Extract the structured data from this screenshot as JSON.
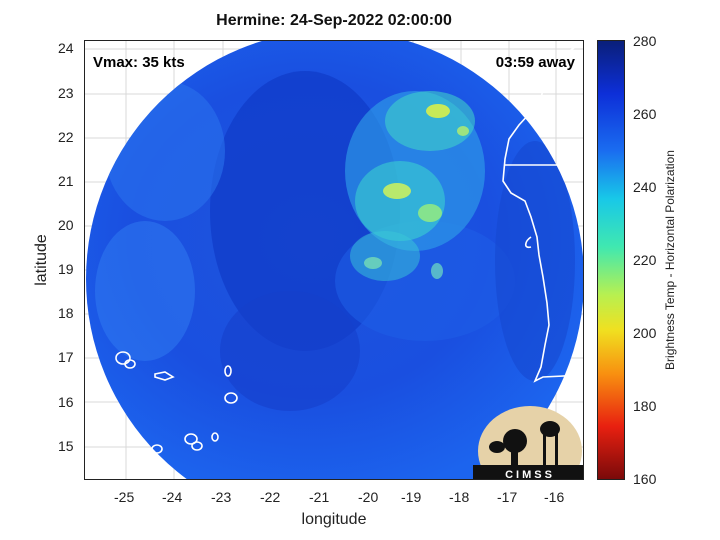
{
  "title": "Hermine: 24-Sep-2022 02:00:00",
  "vmax_label": "Vmax: 35 kts",
  "time_label": "03:59 away",
  "xlabel": "longitude",
  "ylabel": "latitude",
  "x_ticks": [
    "-25",
    "-24",
    "-23",
    "-22",
    "-21",
    "-20",
    "-19",
    "-18",
    "-17",
    "-16"
  ],
  "y_ticks": [
    "24",
    "23",
    "22",
    "21",
    "20",
    "19",
    "18",
    "17",
    "16",
    "15"
  ],
  "colorbar": {
    "label": "Brightness Temp - Horizontal Polarization",
    "ticks": [
      "280",
      "260",
      "240",
      "220",
      "200",
      "180",
      "160"
    ],
    "range": [
      160,
      280
    ]
  },
  "logo_text": "CIMSS",
  "colors": {
    "background_blue": "#1a5ae6",
    "deep_blue": "#0b2fb8",
    "cold_cloud": "#4ff0a8",
    "coast": "#ffffff"
  }
}
